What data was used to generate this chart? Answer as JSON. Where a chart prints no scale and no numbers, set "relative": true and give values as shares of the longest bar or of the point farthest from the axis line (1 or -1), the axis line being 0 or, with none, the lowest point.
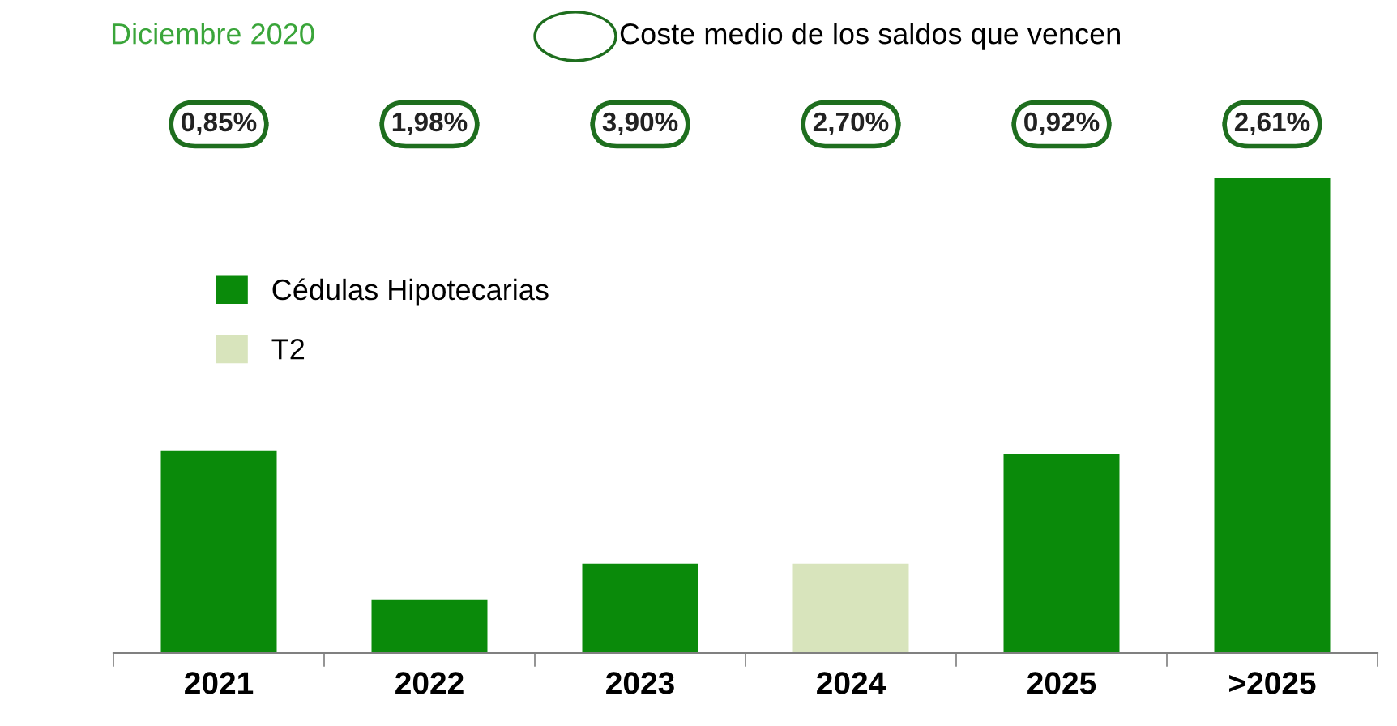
{
  "chart_data": {
    "type": "bar",
    "title": "Diciembre 2020",
    "relative": true,
    "legend": "top left",
    "grid": false,
    "categories": [
      "2021",
      "2022",
      "2023",
      "2024",
      "2025",
      ">2025"
    ],
    "series": [
      {
        "name": "Cédulas Hipotecarias",
        "color": "#0a8a0a",
        "values": [
          0.427,
          0.113,
          0.188,
          null,
          0.42,
          1
        ]
      },
      {
        "name": "T2",
        "color": "#d8e4bc",
        "values": [
          null,
          null,
          null,
          0.188,
          null,
          null
        ]
      }
    ],
    "annotations": [
      "Coste medio de los saldos que vencen",
      "0,85%",
      "1,98%",
      "3,90%",
      "2,70%",
      "0,92%",
      "2,61%"
    ]
  }
}
